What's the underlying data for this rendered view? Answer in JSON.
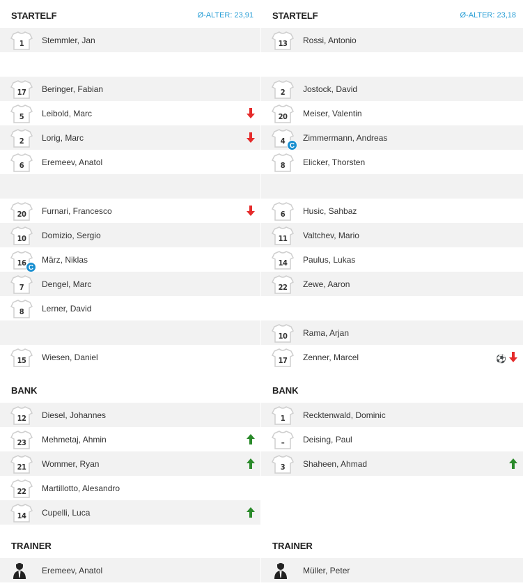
{
  "colors": {
    "accent": "#2a9fd6",
    "sub_out": "#e52b2b",
    "sub_in": "#2a8a2a",
    "captain": "#1a8fd0",
    "row_alt": "#f2f2f2"
  },
  "teams": [
    {
      "startelf_label": "STARTELF",
      "avg_age": "Ø-ALTER: 23,91",
      "startelf": [
        {
          "number": "1",
          "name": "Stemmler, Jan"
        },
        null,
        {
          "number": "17",
          "name": "Beringer, Fabian"
        },
        {
          "number": "5",
          "name": "Leibold, Marc",
          "sub": "out"
        },
        {
          "number": "2",
          "name": "Lorig, Marc",
          "sub": "out"
        },
        {
          "number": "6",
          "name": "Eremeev, Anatol"
        },
        null,
        {
          "number": "20",
          "name": "Furnari, Francesco",
          "sub": "out"
        },
        {
          "number": "10",
          "name": "Domizio, Sergio"
        },
        {
          "number": "16",
          "name": "März, Niklas",
          "captain": true
        },
        {
          "number": "7",
          "name": "Dengel, Marc"
        },
        {
          "number": "8",
          "name": "Lerner, David"
        },
        null,
        {
          "number": "15",
          "name": "Wiesen, Daniel"
        }
      ],
      "bank_label": "BANK",
      "bank": [
        {
          "number": "12",
          "name": "Diesel, Johannes"
        },
        {
          "number": "23",
          "name": "Mehmetaj, Ahmin",
          "sub": "in"
        },
        {
          "number": "21",
          "name": "Wommer, Ryan",
          "sub": "in"
        },
        {
          "number": "22",
          "name": "Martillotto, Alesandro"
        },
        {
          "number": "14",
          "name": "Cupelli, Luca",
          "sub": "in"
        }
      ],
      "trainer_label": "TRAINER",
      "trainer": "Eremeev, Anatol"
    },
    {
      "startelf_label": "STARTELF",
      "avg_age": "Ø-ALTER: 23,18",
      "startelf": [
        {
          "number": "13",
          "name": "Rossi, Antonio"
        },
        null,
        {
          "number": "2",
          "name": "Jostock, David"
        },
        {
          "number": "20",
          "name": "Meiser, Valentin"
        },
        {
          "number": "4",
          "name": "Zimmermann, Andreas",
          "captain": true
        },
        {
          "number": "8",
          "name": "Elicker, Thorsten"
        },
        null,
        {
          "number": "6",
          "name": "Husic, Sahbaz"
        },
        {
          "number": "11",
          "name": "Valtchev, Mario"
        },
        {
          "number": "14",
          "name": "Paulus, Lukas"
        },
        {
          "number": "22",
          "name": "Zewe, Aaron"
        },
        null,
        {
          "number": "10",
          "name": "Rama, Arjan"
        },
        {
          "number": "17",
          "name": "Zenner, Marcel",
          "goal": true,
          "sub": "out"
        }
      ],
      "bank_label": "BANK",
      "bank": [
        {
          "number": "1",
          "name": "Recktenwald, Dominic"
        },
        {
          "number": "–",
          "name": "Deising, Paul"
        },
        {
          "number": "3",
          "name": "Shaheen, Ahmad",
          "sub": "in"
        }
      ],
      "trainer_label": "TRAINER",
      "trainer": "Müller, Peter"
    }
  ],
  "captain_label": "C",
  "goal_glyph": "⚽"
}
